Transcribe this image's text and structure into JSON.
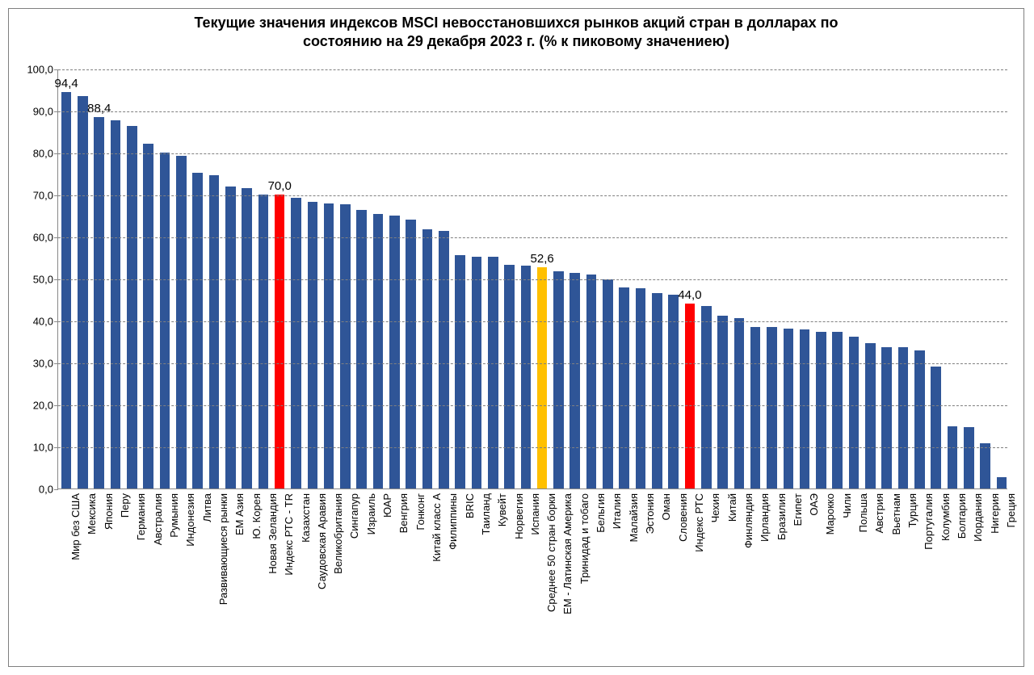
{
  "chart": {
    "type": "bar",
    "title_line1": "Текущие значения индексов MSCI невосстановшихся рынков акций стран в долларах по",
    "title_line2": "состоянию на 29 декабря 2023 г. (% к пиковому значениею)",
    "title_fontsize": 18,
    "title_color": "#000000",
    "background_color": "#ffffff",
    "frame_border_color": "#7f7f7f",
    "plot_border_color": "#888888",
    "grid_color": "#808080",
    "grid_dash": "4,4",
    "axis_fontsize": 13,
    "xlabel_fontsize": 13,
    "value_label_fontsize": 15,
    "bar_width_ratio": 0.62,
    "default_bar_color": "#2f5597",
    "highlight_red": "#ff0000",
    "highlight_yellow": "#ffc000",
    "ylim": [
      0.0,
      100.0
    ],
    "ytick_step": 10.0,
    "yticks": [
      "0,0",
      "10,0",
      "20,0",
      "30,0",
      "40,0",
      "50,0",
      "60,0",
      "70,0",
      "80,0",
      "90,0",
      "100,0"
    ],
    "bars": [
      {
        "label": "Мир без США",
        "value": 94.4,
        "color": "#2f5597",
        "show_value": "94,4"
      },
      {
        "label": "Мексика",
        "value": 93.5,
        "color": "#2f5597"
      },
      {
        "label": "Япония",
        "value": 88.4,
        "color": "#2f5597",
        "show_value": "88,4"
      },
      {
        "label": "Перу",
        "value": 87.6,
        "color": "#2f5597"
      },
      {
        "label": "Германия",
        "value": 86.4,
        "color": "#2f5597"
      },
      {
        "label": "Австралия",
        "value": 82.2,
        "color": "#2f5597"
      },
      {
        "label": "Румыния",
        "value": 80.0,
        "color": "#2f5597"
      },
      {
        "label": "Индонезия",
        "value": 79.2,
        "color": "#2f5597"
      },
      {
        "label": "Литва",
        "value": 75.2,
        "color": "#2f5597"
      },
      {
        "label": "Развивающиеся рынки",
        "value": 74.6,
        "color": "#2f5597"
      },
      {
        "label": "ЕМ Азия",
        "value": 72.0,
        "color": "#2f5597"
      },
      {
        "label": "Ю. Корея",
        "value": 71.6,
        "color": "#2f5597"
      },
      {
        "label": "Новая Зеландия",
        "value": 70.0,
        "color": "#2f5597"
      },
      {
        "label": "Индекс РТС - TR",
        "value": 70.0,
        "color": "#ff0000",
        "show_value": "70,0"
      },
      {
        "label": "Казахстан",
        "value": 69.2,
        "color": "#2f5597"
      },
      {
        "label": "Саудовская Аравия",
        "value": 68.2,
        "color": "#2f5597"
      },
      {
        "label": "Великобритания",
        "value": 67.8,
        "color": "#2f5597"
      },
      {
        "label": "Сингапур",
        "value": 67.6,
        "color": "#2f5597"
      },
      {
        "label": "Израиль",
        "value": 66.4,
        "color": "#2f5597"
      },
      {
        "label": "ЮАР",
        "value": 65.4,
        "color": "#2f5597"
      },
      {
        "label": "Венгрия",
        "value": 65.0,
        "color": "#2f5597"
      },
      {
        "label": "Гонконг",
        "value": 64.0,
        "color": "#2f5597"
      },
      {
        "label": "Китай класс А",
        "value": 61.8,
        "color": "#2f5597"
      },
      {
        "label": "Филиппины",
        "value": 61.4,
        "color": "#2f5597"
      },
      {
        "label": "BRIC",
        "value": 55.6,
        "color": "#2f5597"
      },
      {
        "label": "Таиланд",
        "value": 55.2,
        "color": "#2f5597"
      },
      {
        "label": "Кувейт",
        "value": 55.2,
        "color": "#2f5597"
      },
      {
        "label": "Норвегия",
        "value": 53.2,
        "color": "#2f5597"
      },
      {
        "label": "Испания",
        "value": 53.0,
        "color": "#2f5597"
      },
      {
        "label": "Среднее 50 стран борки",
        "value": 52.6,
        "color": "#ffc000",
        "show_value": "52,6"
      },
      {
        "label": "ЕМ - Латинская Америка",
        "value": 51.8,
        "color": "#2f5597"
      },
      {
        "label": "Тринидад и тобаго",
        "value": 51.4,
        "color": "#2f5597"
      },
      {
        "label": "Бельгия",
        "value": 51.0,
        "color": "#2f5597"
      },
      {
        "label": "Италия",
        "value": 49.8,
        "color": "#2f5597"
      },
      {
        "label": "Малайзия",
        "value": 47.8,
        "color": "#2f5597"
      },
      {
        "label": "Эстония",
        "value": 47.6,
        "color": "#2f5597"
      },
      {
        "label": "Оман",
        "value": 46.6,
        "color": "#2f5597"
      },
      {
        "label": "Словения",
        "value": 46.2,
        "color": "#2f5597"
      },
      {
        "label": "Индекс РТС",
        "value": 44.0,
        "color": "#ff0000",
        "show_value": "44,0"
      },
      {
        "label": "Чехия",
        "value": 43.4,
        "color": "#2f5597"
      },
      {
        "label": "Китай",
        "value": 41.2,
        "color": "#2f5597"
      },
      {
        "label": "Финляндия",
        "value": 40.6,
        "color": "#2f5597"
      },
      {
        "label": "Ирландия",
        "value": 38.4,
        "color": "#2f5597"
      },
      {
        "label": "Бразилия",
        "value": 38.4,
        "color": "#2f5597"
      },
      {
        "label": "Египет",
        "value": 38.0,
        "color": "#2f5597"
      },
      {
        "label": "ОАЭ",
        "value": 37.8,
        "color": "#2f5597"
      },
      {
        "label": "Марокко",
        "value": 37.4,
        "color": "#2f5597"
      },
      {
        "label": "Чили",
        "value": 37.4,
        "color": "#2f5597"
      },
      {
        "label": "Польша",
        "value": 36.2,
        "color": "#2f5597"
      },
      {
        "label": "Австрия",
        "value": 34.6,
        "color": "#2f5597"
      },
      {
        "label": "Вьетнам",
        "value": 33.6,
        "color": "#2f5597"
      },
      {
        "label": "Турция",
        "value": 33.6,
        "color": "#2f5597"
      },
      {
        "label": "Португалия",
        "value": 32.8,
        "color": "#2f5597"
      },
      {
        "label": "Колумбия",
        "value": 29.0,
        "color": "#2f5597"
      },
      {
        "label": "Болгария",
        "value": 14.8,
        "color": "#2f5597"
      },
      {
        "label": "Иордания",
        "value": 14.6,
        "color": "#2f5597"
      },
      {
        "label": "Нигерия",
        "value": 10.8,
        "color": "#2f5597"
      },
      {
        "label": "Греция",
        "value": 2.6,
        "color": "#2f5597"
      }
    ]
  }
}
